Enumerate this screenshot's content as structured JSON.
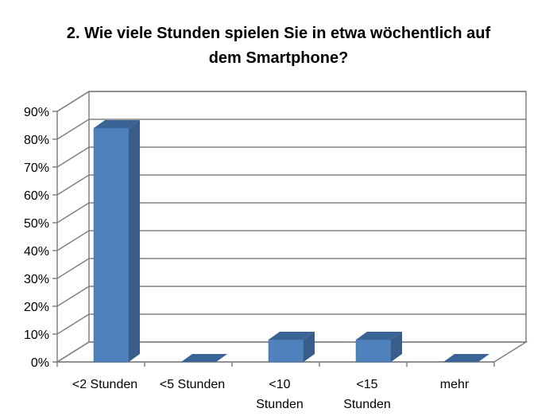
{
  "chart_data": {
    "type": "bar",
    "title_line1": "2. Wie viele Stunden spielen Sie in etwa wöchentlich auf",
    "title_line2": "dem Smartphone?",
    "categories": [
      [
        "<2 Stunden"
      ],
      [
        "<5 Stunden"
      ],
      [
        "<10",
        "Stunden"
      ],
      [
        "<15",
        "Stunden"
      ],
      [
        "mehr"
      ]
    ],
    "values": [
      84,
      0,
      8,
      8,
      0
    ],
    "yticks": [
      "0%",
      "10%",
      "20%",
      "30%",
      "40%",
      "50%",
      "60%",
      "70%",
      "80%",
      "90%"
    ],
    "ylim": [
      0,
      90
    ],
    "grid": true,
    "legend": "none",
    "style": "3d-column",
    "colors": {
      "bar_front": "#4f81bd",
      "bar_side": "#385d8a",
      "bar_top": "#3a6396",
      "grid": "#808080"
    }
  }
}
